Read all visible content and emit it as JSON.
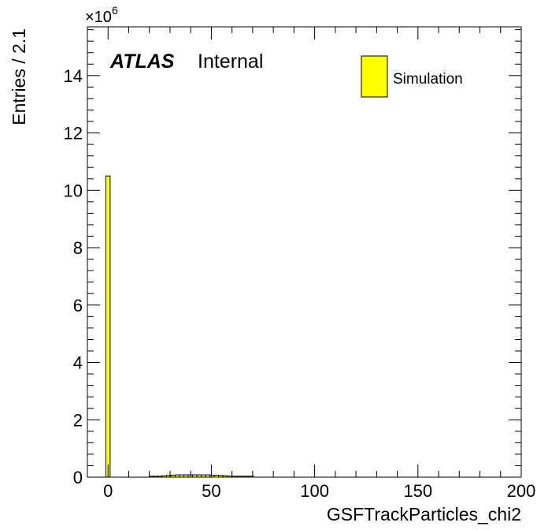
{
  "chart_data": {
    "type": "bar",
    "histogram": true,
    "xlabel": "GSFTrackParticles_chi2",
    "ylabel": "Entries / 2.1",
    "y_multiplier_base": "×10",
    "y_multiplier_exp": "6",
    "xlim": [
      -10,
      200
    ],
    "ylim": [
      0,
      15.7
    ],
    "x_ticks": [
      0,
      50,
      100,
      150,
      200
    ],
    "y_ticks": [
      0,
      2,
      4,
      6,
      8,
      10,
      12,
      14
    ],
    "bin_width": 2.1,
    "bins": [
      {
        "x0": -1.1,
        "value": 10.5
      },
      {
        "x0": 19.9,
        "value": 0.01
      },
      {
        "x0": 22.0,
        "value": 0.02
      },
      {
        "x0": 24.1,
        "value": 0.03
      },
      {
        "x0": 26.2,
        "value": 0.05
      },
      {
        "x0": 28.3,
        "value": 0.06
      },
      {
        "x0": 30.4,
        "value": 0.07
      },
      {
        "x0": 32.5,
        "value": 0.08
      },
      {
        "x0": 34.6,
        "value": 0.08
      },
      {
        "x0": 36.7,
        "value": 0.08
      },
      {
        "x0": 38.8,
        "value": 0.08
      },
      {
        "x0": 40.9,
        "value": 0.08
      },
      {
        "x0": 43.0,
        "value": 0.08
      },
      {
        "x0": 45.1,
        "value": 0.08
      },
      {
        "x0": 47.2,
        "value": 0.08
      },
      {
        "x0": 49.3,
        "value": 0.07
      },
      {
        "x0": 51.4,
        "value": 0.07
      },
      {
        "x0": 53.5,
        "value": 0.06
      },
      {
        "x0": 55.6,
        "value": 0.05
      },
      {
        "x0": 57.7,
        "value": 0.04
      },
      {
        "x0": 59.8,
        "value": 0.03
      },
      {
        "x0": 61.9,
        "value": 0.02
      },
      {
        "x0": 64.0,
        "value": 0.02
      },
      {
        "x0": 66.1,
        "value": 0.01
      },
      {
        "x0": 68.2,
        "value": 0.01
      }
    ],
    "series": [
      {
        "name": "Simulation",
        "color": "#ffff00"
      }
    ],
    "legend_placement": "top-right",
    "grid": false,
    "annotations": {
      "experiment": "ATLAS",
      "status": "Internal"
    }
  }
}
